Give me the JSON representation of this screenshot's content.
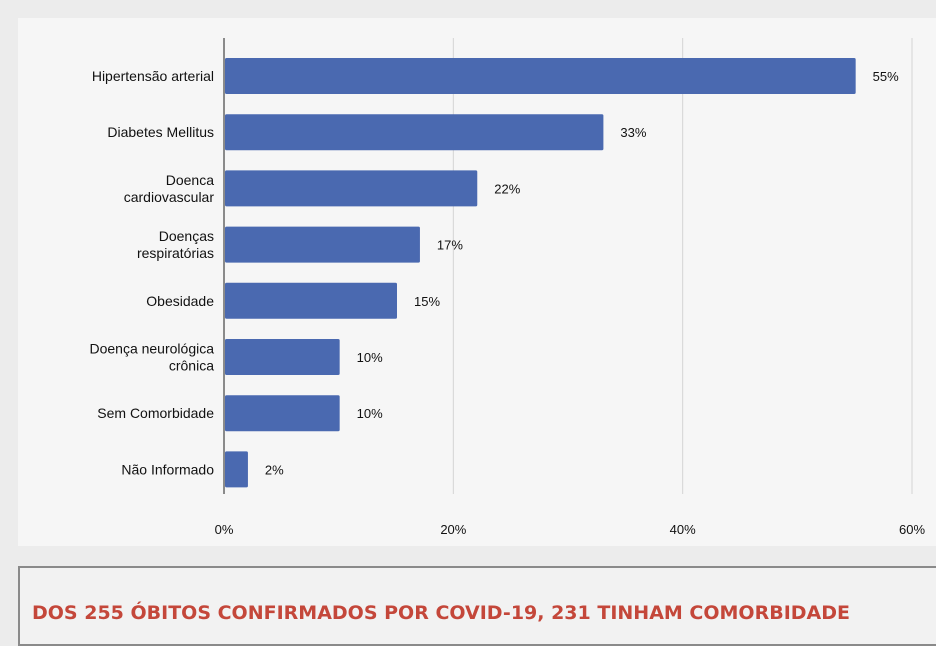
{
  "chart_data": {
    "type": "bar",
    "orientation": "horizontal",
    "categories": [
      "Hipertensão arterial",
      "Diabetes Mellitus",
      "Doenca cardiovascular",
      "Doenças respiratórias",
      "Obesidade",
      "Doença neurológica crônica",
      "Sem Comorbidade",
      "Não Informado"
    ],
    "category_lines": [
      [
        "Hipertensão arterial"
      ],
      [
        "Diabetes Mellitus"
      ],
      [
        "Doenca",
        "cardiovascular"
      ],
      [
        "Doenças",
        "respiratórias"
      ],
      [
        "Obesidade"
      ],
      [
        "Doença neurológica",
        "crônica"
      ],
      [
        "Sem Comorbidade"
      ],
      [
        "Não Informado"
      ]
    ],
    "values": [
      55,
      33,
      22,
      17,
      15,
      10,
      10,
      2
    ],
    "value_labels": [
      "55%",
      "33%",
      "22%",
      "17%",
      "15%",
      "10%",
      "10%",
      "2%"
    ],
    "xticks": [
      0,
      20,
      40,
      60
    ],
    "xtick_labels": [
      "0%",
      "20%",
      "40%",
      "60%"
    ],
    "xlim": [
      0,
      60
    ],
    "grid": true,
    "bar_color": "#4a69b0"
  },
  "footer": {
    "text": "DOS 255 ÓBITOS CONFIRMADOS POR COVID-19, 231 TINHAM COMORBIDADE"
  }
}
